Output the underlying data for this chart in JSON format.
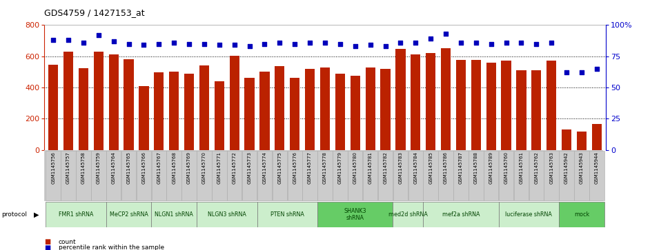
{
  "title": "GDS4759 / 1427153_at",
  "samples": [
    "GSM1145756",
    "GSM1145757",
    "GSM1145758",
    "GSM1145759",
    "GSM1145764",
    "GSM1145765",
    "GSM1145766",
    "GSM1145767",
    "GSM1145768",
    "GSM1145769",
    "GSM1145770",
    "GSM1145771",
    "GSM1145772",
    "GSM1145773",
    "GSM1145774",
    "GSM1145775",
    "GSM1145776",
    "GSM1145777",
    "GSM1145778",
    "GSM1145779",
    "GSM1145780",
    "GSM1145781",
    "GSM1145782",
    "GSM1145783",
    "GSM1145784",
    "GSM1145785",
    "GSM1145786",
    "GSM1145787",
    "GSM1145788",
    "GSM1145789",
    "GSM1145760",
    "GSM1145761",
    "GSM1145762",
    "GSM1145763",
    "GSM1145942",
    "GSM1145943",
    "GSM1145944"
  ],
  "bar_values": [
    545,
    630,
    525,
    630,
    610,
    580,
    410,
    495,
    500,
    490,
    540,
    440,
    605,
    460,
    500,
    535,
    460,
    520,
    530,
    490,
    475,
    530,
    520,
    645,
    610,
    620,
    650,
    575,
    575,
    560,
    570,
    510,
    510,
    570,
    130,
    120,
    165
  ],
  "percentile_values": [
    88,
    88,
    86,
    92,
    87,
    85,
    84,
    85,
    86,
    85,
    85,
    84,
    84,
    83,
    85,
    86,
    85,
    86,
    86,
    85,
    83,
    84,
    83,
    86,
    86,
    89,
    93,
    86,
    86,
    85,
    86,
    86,
    85,
    86,
    62,
    62,
    65
  ],
  "bar_color": "#bb2200",
  "dot_color": "#0000bb",
  "ylim_left": [
    0,
    800
  ],
  "ylim_right": [
    0,
    100
  ],
  "yticks_left": [
    0,
    200,
    400,
    600,
    800
  ],
  "yticks_right": [
    0,
    25,
    50,
    75,
    100
  ],
  "protocol_groups": [
    {
      "label": "FMR1 shRNA",
      "start": 0,
      "end": 4,
      "color": "#cceecc"
    },
    {
      "label": "MeCP2 shRNA",
      "start": 4,
      "end": 7,
      "color": "#cceecc"
    },
    {
      "label": "NLGN1 shRNA",
      "start": 7,
      "end": 10,
      "color": "#cceecc"
    },
    {
      "label": "NLGN3 shRNA",
      "start": 10,
      "end": 14,
      "color": "#cceecc"
    },
    {
      "label": "PTEN shRNA",
      "start": 14,
      "end": 18,
      "color": "#cceecc"
    },
    {
      "label": "SHANK3\nshRNA",
      "start": 18,
      "end": 23,
      "color": "#66cc66"
    },
    {
      "label": "med2d shRNA",
      "start": 23,
      "end": 25,
      "color": "#cceecc"
    },
    {
      "label": "mef2a shRNA",
      "start": 25,
      "end": 30,
      "color": "#cceecc"
    },
    {
      "label": "luciferase shRNA",
      "start": 30,
      "end": 34,
      "color": "#cceecc"
    },
    {
      "label": "mock",
      "start": 34,
      "end": 37,
      "color": "#66cc66"
    }
  ],
  "legend_count_color": "#bb2200",
  "legend_pct_color": "#0000bb",
  "bg_color": "#ffffff",
  "left_axis_color": "#cc2200",
  "right_axis_color": "#0000cc",
  "tick_bg_color": "#cccccc",
  "grid_yticks": [
    200,
    400,
    600
  ]
}
